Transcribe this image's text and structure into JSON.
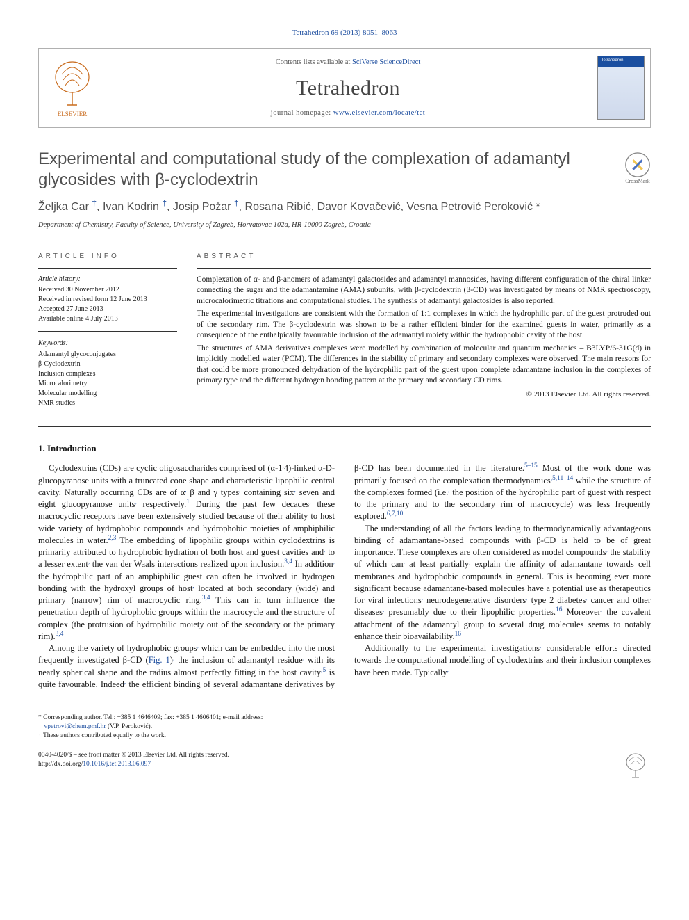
{
  "citation_line": "Tetrahedron 69 (2013) 8051–8063",
  "header": {
    "contents_prefix": "Contents lists available at ",
    "contents_link_text": "SciVerse ScienceDirect",
    "journal": "Tetrahedron",
    "homepage_prefix": "journal homepage: ",
    "homepage_link": "www.elsevier.com/locate/tet",
    "publisher_logo_alt": "Elsevier",
    "cover_label": "Tetrahedron"
  },
  "title": "Experimental and computational study of the complexation of adamantyl glycosides with β-cyclodextrin",
  "crossmark_label": "CrossMark",
  "authors_html": "Željka Car <sup>†</sup>, Ivan Kodrin <sup>†</sup>, Josip Požar <sup>†</sup>, Rosana Ribić, Davor Kovačević, Vesna Petrović Peroković *",
  "affiliation": "Department of Chemistry, Faculty of Science, University of Zagreb, Horvatovac 102a, HR-10000 Zagreb, Croatia",
  "article_info": {
    "head": "ARTICLE INFO",
    "history_label": "Article history:",
    "history": [
      "Received 30 November 2012",
      "Received in revised form 12 June 2013",
      "Accepted 27 June 2013",
      "Available online 4 July 2013"
    ],
    "keywords_label": "Keywords:",
    "keywords": [
      "Adamantyl glycoconjugates",
      "β-Cyclodextrin",
      "Inclusion complexes",
      "Microcalorimetry",
      "Molecular modelling",
      "NMR studies"
    ]
  },
  "abstract": {
    "head": "ABSTRACT",
    "paragraphs": [
      "Complexation of α- and β-anomers of adamantyl galactosides and adamantyl mannosides, having different configuration of the chiral linker connecting the sugar and the adamantamine (AMA) subunits, with β-cyclodextrin (β-CD) was investigated by means of NMR spectroscopy, microcalorimetric titrations and computational studies. The synthesis of adamantyl galactosides is also reported.",
      "The experimental investigations are consistent with the formation of 1:1 complexes in which the hydrophilic part of the guest protruded out of the secondary rim. The β-cyclodextrin was shown to be a rather efficient binder for the examined guests in water, primarily as a consequence of the enthalpically favourable inclusion of the adamantyl moiety within the hydrophobic cavity of the host.",
      "The structures of AMA derivatives complexes were modelled by combination of molecular and quantum mechanics – B3LYP/6-31G(d) in implicitly modelled water (PCM). The differences in the stability of primary and secondary complexes were observed. The main reasons for that could be more pronounced dehydration of the hydrophilic part of the guest upon complete adamantane inclusion in the complexes of primary type and the different hydrogen bonding pattern at the primary and secondary CD rims."
    ],
    "copyright": "© 2013 Elsevier Ltd. All rights reserved."
  },
  "section1_head": "1. Introduction",
  "body_paragraphs": [
    "Cyclodextrins (CDs) are cyclic oligosaccharides comprised of (α-1,4)-linked α-D-glucopyranose units with a truncated cone shape and characteristic lipophilic central cavity. Naturally occurring CDs are of α, β and γ types, containing six, seven and eight glucopyranose units, respectively.¹ During the past few decades, these macrocyclic receptors have been extensively studied because of their ability to host wide variety of hydrophobic compounds and hydrophobic moieties of amphiphilic molecules in water.²,³ The embedding of lipophilic groups within cyclodextrins is primarily attributed to hydrophobic hydration of both host and guest cavities and, to a lesser extent, the van der Waals interactions realized upon inclusion.³,⁴ In addition, the hydrophilic part of an amphiphilic guest can often be involved in hydrogen bonding with the hydroxyl groups of host, located at both secondary (wide) and primary (narrow) rim of macrocyclic ring.³,⁴ This can in turn influence the penetration depth of hydrophobic groups within the macrocycle and the structure of complex (the protrusion of hydrophilic moiety out of the secondary or the primary rim).³,⁴",
    "Among the variety of hydrophobic groups, which can be embedded into the most frequently investigated β-CD (Fig. 1), the inclusion of adamantyl residue, with its nearly spherical shape and the radius almost perfectly fitting in the host cavity,⁵ is quite favourable. Indeed, the efficient binding of several adamantane derivatives by β-CD has been documented in the literature.⁵⁻¹⁵ Most of the work done was primarily focused on the complexation thermodynamics,⁵,¹¹⁻¹⁴ while the structure of the complexes formed (i.e., the position of the hydrophilic part of guest with respect to the primary and to the secondary rim of macrocycle) was less frequently explored.⁶,⁷,¹⁰",
    "The understanding of all the factors leading to thermodynamically advantageous binding of adamantane-based compounds with β-CD is held to be of great importance. These complexes are often considered as model compounds, the stability of which can, at least partially, explain the affinity of adamantane towards cell membranes and hydrophobic compounds in general. This is becoming ever more significant because adamantane-based molecules have a potential use as therapeutics for viral infections, neurodegenerative disorders, type 2 diabetes, cancer and other diseases, presumably due to their lipophilic properties.¹⁶ Moreover, the covalent attachment of the adamantyl group to several drug molecules seems to notably enhance their bioavailability.¹⁶",
    "Additionally to the experimental investigations, considerable efforts directed towards the computational modelling of cyclodextrins and their inclusion complexes have been made. Typically,"
  ],
  "footnotes": {
    "corresponding": "* Corresponding author. Tel.: +385 1 4646409; fax: +385 1 4606401; e-mail address: ",
    "email": "vpetrovi@chem.pmf.hr",
    "corresponding_tail": " (V.P. Peroković).",
    "equal": "† These authors contributed equally to the work."
  },
  "bottom": {
    "issn_line": "0040-4020/$ – see front matter © 2013 Elsevier Ltd. All rights reserved.",
    "doi_prefix": "http://dx.doi.org/",
    "doi": "10.1016/j.tet.2013.06.097"
  },
  "colors": {
    "link": "#2050a0",
    "heading_grey": "#505050",
    "rule": "#333333"
  }
}
